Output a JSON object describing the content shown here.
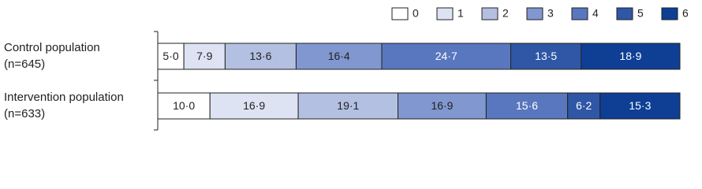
{
  "chart_data": {
    "type": "stacked-bar-horizontal",
    "categories": [
      "Control population (n=645)",
      "Intervention population (n=633)"
    ],
    "series": [
      {
        "name": "0",
        "color": "#ffffff",
        "values": [
          5.0,
          10.0
        ],
        "value_labels": [
          "5·0",
          "10·0"
        ]
      },
      {
        "name": "1",
        "color": "#dde3f2",
        "values": [
          7.9,
          16.9
        ],
        "value_labels": [
          "7·9",
          "16·9"
        ]
      },
      {
        "name": "2",
        "color": "#b3c0e1",
        "values": [
          13.6,
          19.1
        ],
        "value_labels": [
          "13·6",
          "19·1"
        ]
      },
      {
        "name": "3",
        "color": "#8097cf",
        "values": [
          16.4,
          16.9
        ],
        "value_labels": [
          "16·4",
          "16·9"
        ]
      },
      {
        "name": "4",
        "color": "#5977be",
        "values": [
          24.7,
          15.6
        ],
        "value_labels": [
          "24·7",
          "15·6"
        ]
      },
      {
        "name": "5",
        "color": "#2f57a6",
        "values": [
          13.5,
          6.2
        ],
        "value_labels": [
          "13·5",
          "6·2"
        ]
      },
      {
        "name": "6",
        "color": "#0e3f95",
        "values": [
          18.9,
          15.3
        ],
        "value_labels": [
          "18·9",
          "15·3"
        ]
      }
    ],
    "xlim": [
      0,
      100
    ]
  }
}
